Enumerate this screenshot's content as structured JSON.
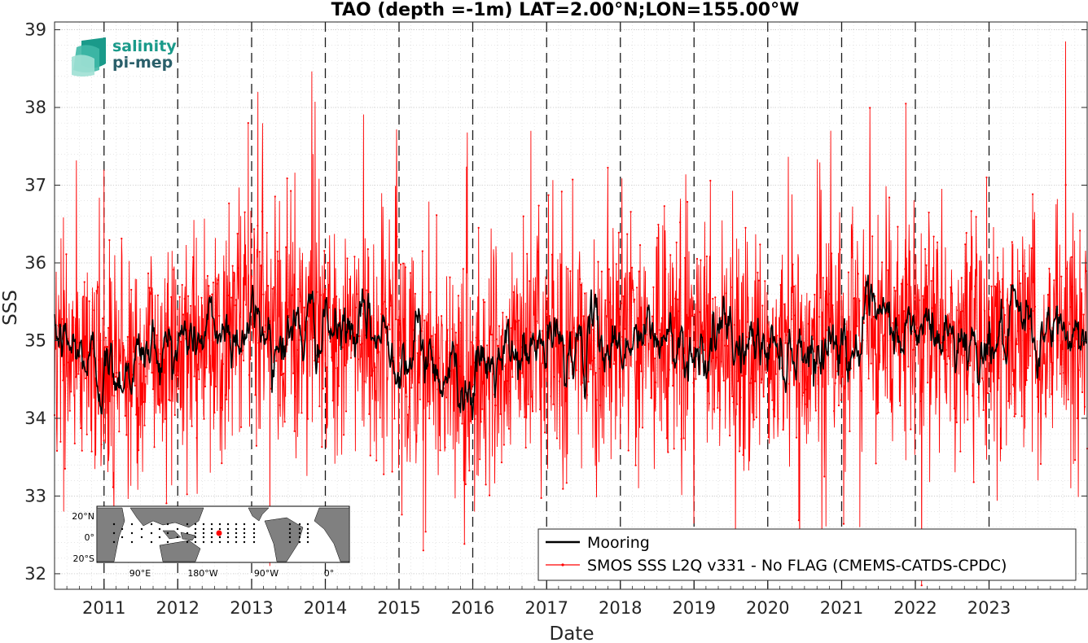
{
  "chart_data": {
    "type": "line",
    "title": "TAO (depth =-1m) LAT=2.00°N;LON=155.00°W",
    "xlabel": "Date",
    "ylabel": "SSS",
    "xlim": [
      "2010-05-01",
      "2024-05-01"
    ],
    "ylim": [
      31.8,
      39.1
    ],
    "y_ticks": [
      32,
      33,
      34,
      35,
      36,
      37,
      38,
      39
    ],
    "x_ticks": [
      "2011",
      "2012",
      "2013",
      "2014",
      "2015",
      "2016",
      "2017",
      "2018",
      "2019",
      "2020",
      "2021",
      "2022",
      "2023"
    ],
    "year_dividers": [
      "2011-01-01",
      "2012-01-01",
      "2013-01-01",
      "2014-01-01",
      "2015-01-01",
      "2016-01-01",
      "2017-01-01",
      "2018-01-01",
      "2019-01-01",
      "2020-01-01",
      "2021-01-01",
      "2022-01-01",
      "2023-01-01"
    ],
    "grid": true,
    "legend_position": "bottom-right",
    "series": [
      {
        "name": "Mooring",
        "color": "#000000",
        "style": "line",
        "mean": 35.0,
        "spread": 0.35,
        "anchors": [
          {
            "x": "2010-05-01",
            "y": 35.0
          },
          {
            "x": "2011-01-01",
            "y": 34.6
          },
          {
            "x": "2012-01-01",
            "y": 35.0
          },
          {
            "x": "2013-01-01",
            "y": 35.2
          },
          {
            "x": "2014-01-01",
            "y": 35.1
          },
          {
            "x": "2015-01-01",
            "y": 35.0
          },
          {
            "x": "2016-01-01",
            "y": 34.5
          },
          {
            "x": "2017-01-01",
            "y": 34.9
          },
          {
            "x": "2018-01-01",
            "y": 35.0
          },
          {
            "x": "2019-01-01",
            "y": 35.0
          },
          {
            "x": "2020-01-01",
            "y": 34.9
          },
          {
            "x": "2021-01-01",
            "y": 35.0
          },
          {
            "x": "2022-01-01",
            "y": 35.1
          },
          {
            "x": "2023-01-01",
            "y": 35.0
          },
          {
            "x": "2024-05-01",
            "y": 35.1
          }
        ]
      },
      {
        "name": "SMOS SSS L2Q v331 - No FLAG  (CMEMS-CATDS-CPDC)",
        "color": "#ff0000",
        "style": "line-with-dots",
        "mean": 35.0,
        "spread": 0.75,
        "extremes": [
          {
            "x": "2010-06-15",
            "y": 32.8
          },
          {
            "x": "2011-01-01",
            "y": 37.2
          },
          {
            "x": "2012-06-10",
            "y": 33.3
          },
          {
            "x": "2012-12-15",
            "y": 37.8
          },
          {
            "x": "2013-02-01",
            "y": 38.2
          },
          {
            "x": "2013-04-01",
            "y": 32.1
          },
          {
            "x": "2013-11-01",
            "y": 37.4
          },
          {
            "x": "2015-05-01",
            "y": 32.3
          },
          {
            "x": "2016-01-10",
            "y": 32.8
          },
          {
            "x": "2016-10-15",
            "y": 37.7
          },
          {
            "x": "2018-04-01",
            "y": 33.1
          },
          {
            "x": "2021-04-01",
            "y": 32.6
          },
          {
            "x": "2021-11-15",
            "y": 38.05
          },
          {
            "x": "2022-12-20",
            "y": 37.1
          },
          {
            "x": "2023-09-01",
            "y": 33.2
          },
          {
            "x": "2024-01-15",
            "y": 38.85
          },
          {
            "x": "2024-02-10",
            "y": 33.1
          }
        ]
      }
    ]
  },
  "logo": {
    "line1": "salinity",
    "line2": "pi-mep",
    "colors": [
      "#1a9a8a",
      "#2a5f6a",
      "#7fd1c4"
    ]
  },
  "inset_map": {
    "lat_labels": [
      "20°N",
      "0°",
      "20°S"
    ],
    "lon_labels": [
      "90°E",
      "180°W",
      "90°W",
      "0°"
    ],
    "marker_color": "#ff0000",
    "land_color": "#808080"
  }
}
